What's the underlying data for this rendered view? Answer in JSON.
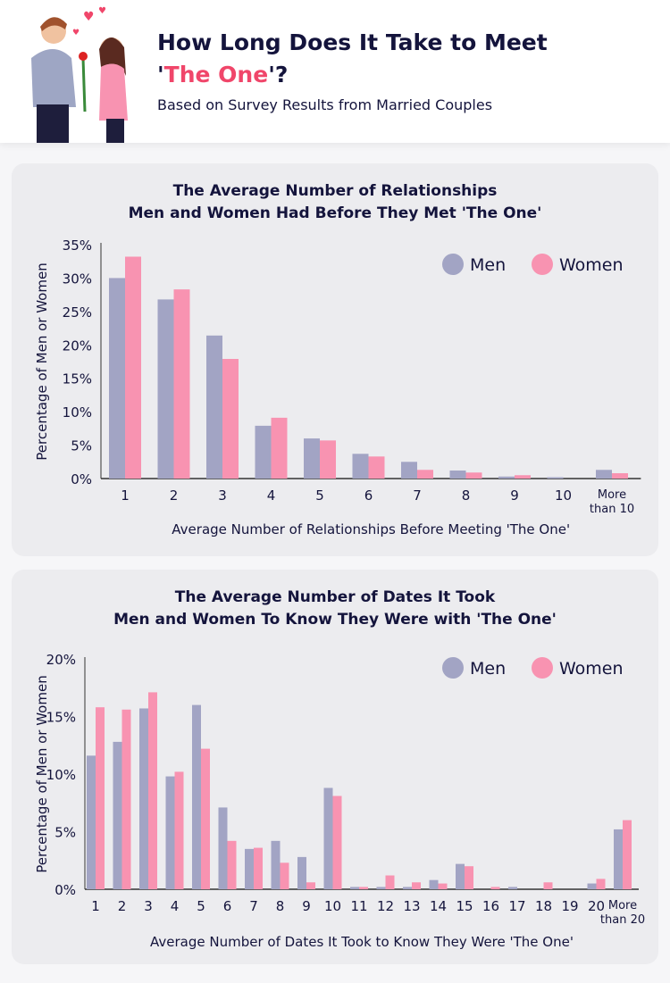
{
  "header": {
    "title_part1": "How Long Does It Take to Meet",
    "title_quote_open": "'",
    "title_highlight": "The One",
    "title_quote_close": "'?",
    "subtitle": "Based on Survey Results from Married Couples"
  },
  "colors": {
    "men": "#a2a4c4",
    "women": "#f893b1",
    "accent": "#f0466a"
  },
  "chart_data": [
    {
      "type": "bar",
      "title_line1": "The Average Number of Relationships",
      "title_line2": "Men and Women Had Before They Met 'The One'",
      "xlabel": "Average Number of Relationships Before Meeting 'The One'",
      "ylabel": "Percentage of Men or Women",
      "ylim": [
        0,
        35
      ],
      "yticks": [
        "0%",
        "5%",
        "10%",
        "15%",
        "20%",
        "25%",
        "30%",
        "35%"
      ],
      "legend_position": "top-right",
      "categories": [
        "1",
        "2",
        "3",
        "4",
        "5",
        "6",
        "7",
        "8",
        "9",
        "10",
        "More|than 10"
      ],
      "series": [
        {
          "name": "Men",
          "values": [
            30,
            26.8,
            21.4,
            7.9,
            6.0,
            3.7,
            2.5,
            1.2,
            0.3,
            0.2,
            1.3
          ]
        },
        {
          "name": "Women",
          "values": [
            33.2,
            28.3,
            17.9,
            9.1,
            5.7,
            3.3,
            1.3,
            0.9,
            0.5,
            0,
            0.8
          ]
        }
      ]
    },
    {
      "type": "bar",
      "title_line1": "The Average Number of Dates It Took",
      "title_line2": "Men and Women To Know They Were with 'The One'",
      "xlabel": "Average Number of Dates It Took to Know They Were 'The One'",
      "ylabel": "Percentage of Men or Women",
      "ylim": [
        0,
        20
      ],
      "yticks": [
        "0%",
        "5%",
        "10%",
        "15%",
        "20%"
      ],
      "legend_position": "top-right",
      "categories": [
        "1",
        "2",
        "3",
        "4",
        "5",
        "6",
        "7",
        "8",
        "9",
        "10",
        "11",
        "12",
        "13",
        "14",
        "15",
        "16",
        "17",
        "18",
        "19",
        "20",
        "More|than 20"
      ],
      "series": [
        {
          "name": "Men",
          "values": [
            11.6,
            12.8,
            15.7,
            9.8,
            16.0,
            7.1,
            3.5,
            4.2,
            2.8,
            8.8,
            0.2,
            0.2,
            0.2,
            0.8,
            2.2,
            0,
            0.2,
            0,
            0,
            0.5,
            5.2
          ]
        },
        {
          "name": "Women",
          "values": [
            15.8,
            15.6,
            17.1,
            10.2,
            12.2,
            4.2,
            3.6,
            2.3,
            0.6,
            8.1,
            0.2,
            1.2,
            0.6,
            0.5,
            2.0,
            0.2,
            0,
            0.6,
            0,
            0.9,
            6.0
          ]
        }
      ]
    }
  ]
}
